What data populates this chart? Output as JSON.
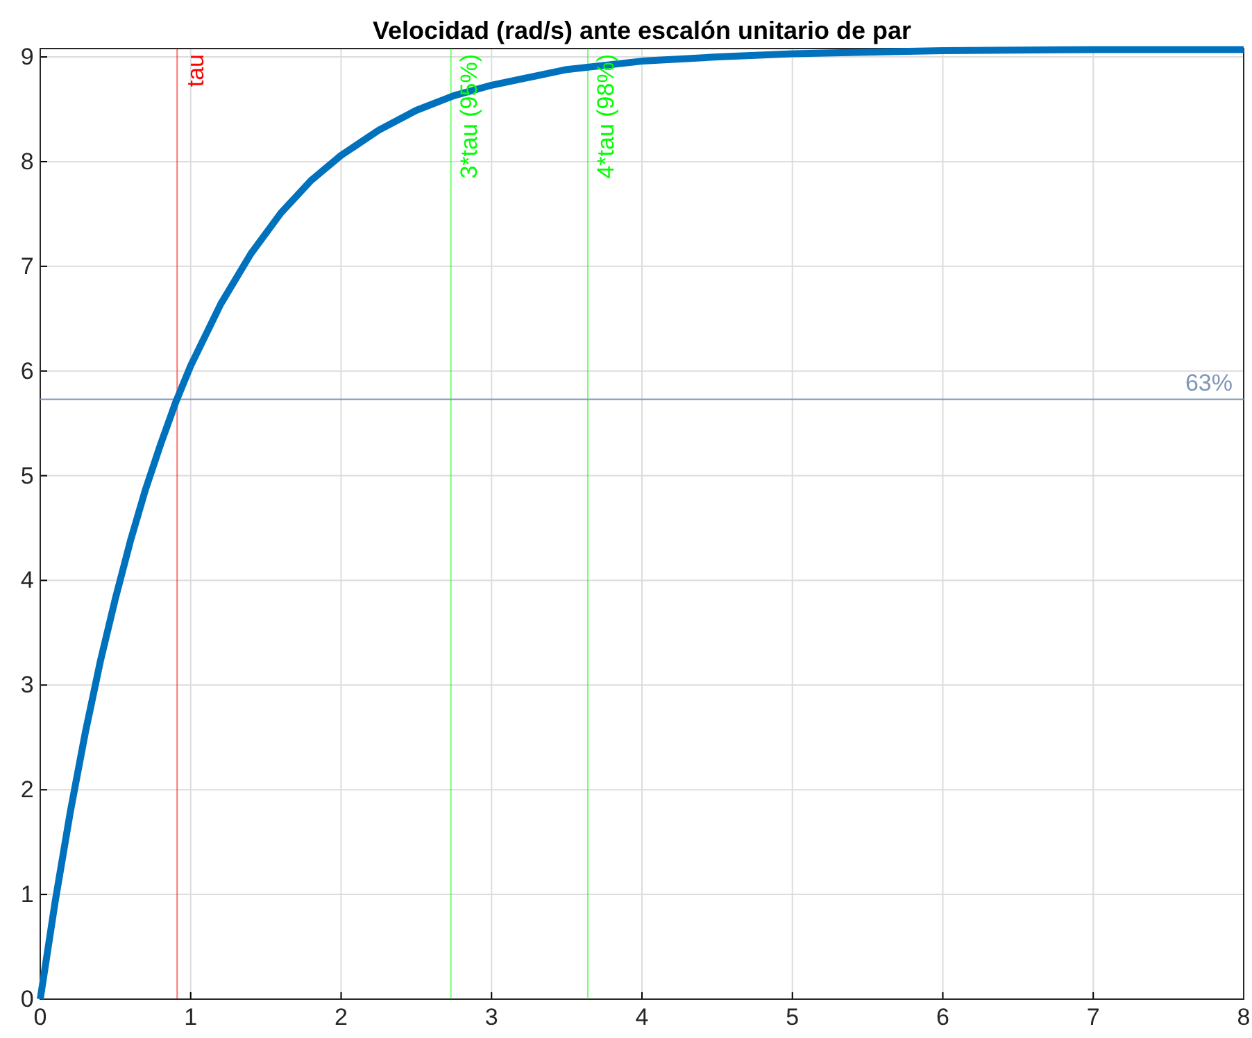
{
  "chart_data": {
    "type": "line",
    "title": "Velocidad (rad/s) ante escalón unitario de par",
    "x": [
      0,
      0.1,
      0.2,
      0.3,
      0.4,
      0.5,
      0.6,
      0.7,
      0.8,
      0.9,
      1.0,
      1.2,
      1.4,
      1.6,
      1.8,
      2.0,
      2.25,
      2.5,
      2.75,
      3.0,
      3.5,
      4.0,
      4.5,
      5,
      6,
      7,
      8
    ],
    "series": [
      {
        "color": "#0072bd",
        "values": [
          0,
          0.94,
          1.79,
          2.55,
          3.23,
          3.83,
          4.38,
          4.87,
          5.3,
          5.7,
          6.05,
          6.64,
          7.12,
          7.51,
          7.82,
          8.06,
          8.3,
          8.49,
          8.63,
          8.73,
          8.88,
          8.96,
          9.0,
          9.03,
          9.06,
          9.07,
          9.07
        ]
      }
    ],
    "xlim": [
      0,
      8
    ],
    "ylim": [
      0,
      9.08
    ],
    "xticks": [
      0,
      1,
      2,
      3,
      4,
      5,
      6,
      7,
      8
    ],
    "yticks": [
      0,
      1,
      2,
      3,
      4,
      5,
      6,
      7,
      8,
      9
    ],
    "grid": true,
    "line_style": "solid",
    "marker": "none",
    "ref_lines": [
      {
        "axis": "x",
        "value": 0.91,
        "label": "tau",
        "color": "#ff0000"
      },
      {
        "axis": "x",
        "value": 2.73,
        "label": "3*tau (95%)",
        "color": "#00ff00"
      },
      {
        "axis": "x",
        "value": 3.64,
        "label": "4*tau (98%)",
        "color": "#00ff00"
      },
      {
        "axis": "y",
        "value": 5.73,
        "color": "#8096b8"
      }
    ],
    "annotations": [
      "63%"
    ]
  }
}
